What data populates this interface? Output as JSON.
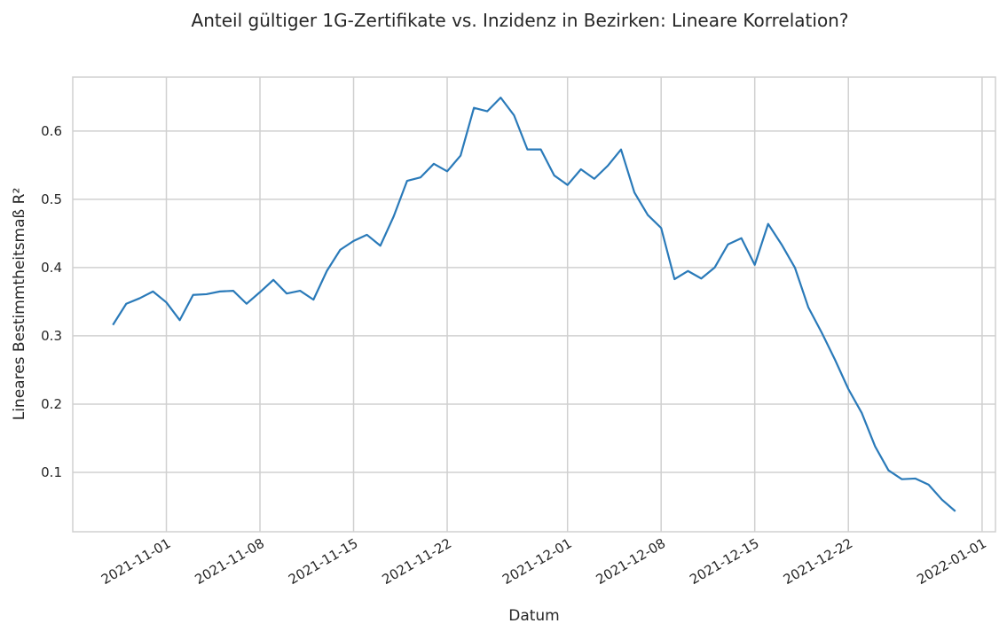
{
  "chart_data": {
    "type": "line",
    "title": "Anteil gültiger 1G-Zertifikate vs. Inzidenz in Bezirken: Lineare Korrelation?",
    "x_label": "Datum",
    "y_label": "Lineares Bestimmtheitsmaß R²",
    "x": [
      "2021-10-28",
      "2021-10-29",
      "2021-10-30",
      "2021-10-31",
      "2021-11-01",
      "2021-11-02",
      "2021-11-03",
      "2021-11-04",
      "2021-11-05",
      "2021-11-06",
      "2021-11-07",
      "2021-11-08",
      "2021-11-09",
      "2021-11-10",
      "2021-11-11",
      "2021-11-12",
      "2021-11-13",
      "2021-11-14",
      "2021-11-15",
      "2021-11-16",
      "2021-11-17",
      "2021-11-18",
      "2021-11-19",
      "2021-11-20",
      "2021-11-21",
      "2021-11-22",
      "2021-11-23",
      "2021-11-24",
      "2021-11-25",
      "2021-11-26",
      "2021-11-27",
      "2021-11-28",
      "2021-11-29",
      "2021-11-30",
      "2021-12-01",
      "2021-12-02",
      "2021-12-03",
      "2021-12-04",
      "2021-12-05",
      "2021-12-06",
      "2021-12-07",
      "2021-12-08",
      "2021-12-09",
      "2021-12-10",
      "2021-12-11",
      "2021-12-12",
      "2021-12-13",
      "2021-12-14",
      "2021-12-15",
      "2021-12-16",
      "2021-12-17",
      "2021-12-18",
      "2021-12-19",
      "2021-12-20",
      "2021-12-21",
      "2021-12-22",
      "2021-12-23",
      "2021-12-24",
      "2021-12-25",
      "2021-12-26",
      "2021-12-27",
      "2021-12-28",
      "2021-12-29",
      "2021-12-30"
    ],
    "values": [
      0.316,
      0.347,
      0.355,
      0.365,
      0.349,
      0.323,
      0.36,
      0.361,
      0.365,
      0.366,
      0.347,
      0.364,
      0.382,
      0.362,
      0.366,
      0.353,
      0.395,
      0.426,
      0.439,
      0.448,
      0.432,
      0.475,
      0.527,
      0.532,
      0.552,
      0.541,
      0.564,
      0.634,
      0.629,
      0.649,
      0.623,
      0.573,
      0.573,
      0.535,
      0.521,
      0.544,
      0.53,
      0.549,
      0.573,
      0.51,
      0.477,
      0.458,
      0.383,
      0.395,
      0.384,
      0.4,
      0.434,
      0.443,
      0.404,
      0.464,
      0.434,
      0.4,
      0.342,
      0.305,
      0.265,
      0.222,
      0.187,
      0.138,
      0.103,
      0.09,
      0.091,
      0.082,
      0.06,
      0.043
    ],
    "color": "#2a7ab9",
    "xlim": [
      "2021-10-25",
      "2022-01-02"
    ],
    "xticks": [
      "2021-11-01",
      "2021-11-08",
      "2021-11-15",
      "2021-11-22",
      "2021-12-01",
      "2021-12-08",
      "2021-12-15",
      "2021-12-22",
      "2022-01-01"
    ],
    "ylim": [
      0.013,
      0.679
    ],
    "yticks": [
      0.1,
      0.2,
      0.3,
      0.4,
      0.5,
      0.6
    ],
    "grid": true
  }
}
